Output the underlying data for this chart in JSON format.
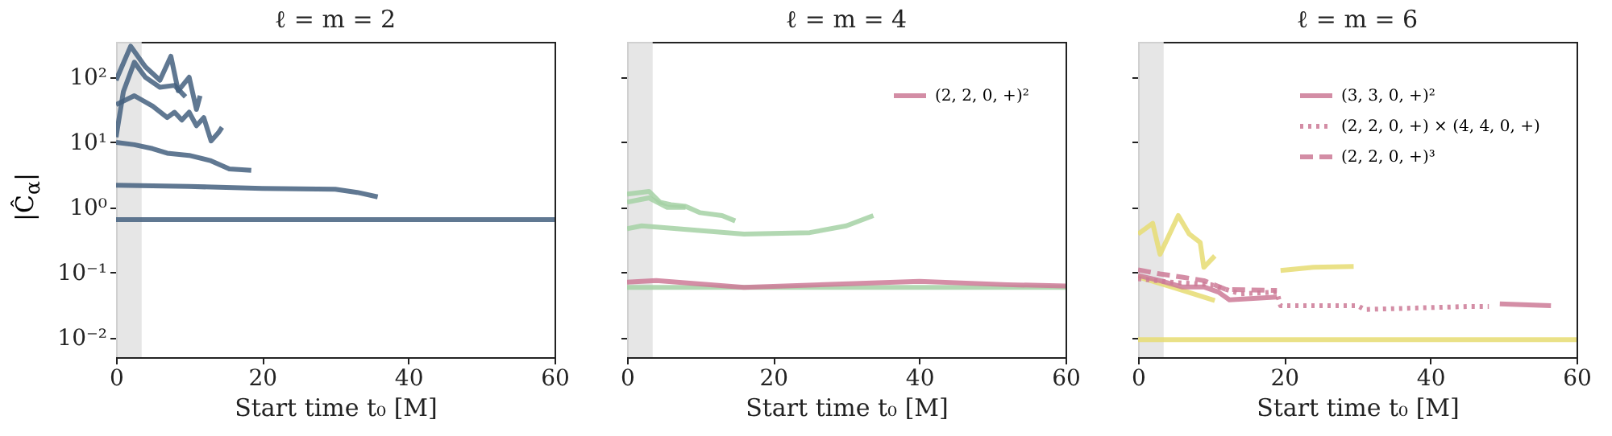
{
  "chart_data": [
    {
      "type": "line",
      "title": "ℓ = m = 2",
      "xlabel": "Start time t₀ [M]",
      "ylabel": "|Ĉ$_{α}$|",
      "log": "y",
      "xlim": [
        0,
        60
      ],
      "xticks": [
        0,
        20,
        40,
        60
      ],
      "ylim": [
        0.005,
        350
      ],
      "yticks": [
        {
          "value": 0.01,
          "label": "10⁻²"
        },
        {
          "value": 0.1,
          "label": "10⁻¹"
        },
        {
          "value": 1,
          "label": "10⁰"
        },
        {
          "value": 10,
          "label": "10¹"
        },
        {
          "value": 100,
          "label": "10²"
        }
      ],
      "bands": [
        {
          "axis": "x",
          "from": 0,
          "to": 3.5,
          "color": "#e3e3e3"
        }
      ],
      "series": [
        {
          "color": "#44607f",
          "x": [
            0,
            20,
            40,
            60
          ],
          "values": [
            0.65,
            0.65,
            0.65,
            0.65
          ]
        },
        {
          "color": "#44607f",
          "x": [
            0,
            10,
            20,
            30,
            33,
            35.8
          ],
          "values": [
            2.2,
            2.1,
            1.95,
            1.9,
            1.7,
            1.45
          ]
        },
        {
          "color": "#44607f",
          "x": [
            0,
            2.5,
            5,
            7,
            10,
            13,
            15.5,
            18.5
          ],
          "values": [
            10,
            9.2,
            8,
            6.8,
            6.3,
            5.2,
            3.9,
            3.7
          ]
        },
        {
          "color": "#44607f",
          "x": [
            0,
            2.5,
            5,
            7,
            8,
            9,
            10,
            11,
            12,
            13,
            14,
            14.5
          ],
          "values": [
            38,
            52,
            36,
            24,
            29,
            22,
            29,
            18,
            24,
            10.5,
            14,
            17
          ]
        },
        {
          "color": "#44607f",
          "x": [
            0,
            2,
            4,
            6,
            7.5,
            8.5,
            10,
            11,
            11.5
          ],
          "values": [
            90,
            300,
            145,
            90,
            210,
            62,
            100,
            32,
            52
          ]
        },
        {
          "color": "#44607f",
          "x": [
            0,
            1,
            2.5,
            4,
            6,
            8,
            9.5
          ],
          "values": [
            12,
            60,
            170,
            100,
            70,
            75,
            50
          ]
        }
      ]
    },
    {
      "type": "line",
      "title": "ℓ = m = 4",
      "xlabel": "Start time t₀ [M]",
      "log": "y",
      "xlim": [
        0,
        60
      ],
      "xticks": [
        0,
        20,
        40,
        60
      ],
      "ylim": [
        0.005,
        350
      ],
      "yticks": [
        {
          "value": 0.01,
          "label": null
        },
        {
          "value": 0.1,
          "label": null
        },
        {
          "value": 1,
          "label": null
        },
        {
          "value": 10,
          "label": null
        },
        {
          "value": 100,
          "label": null
        }
      ],
      "tick_labels": "x",
      "legend": "top right",
      "bands": [
        {
          "axis": "x",
          "from": 0,
          "to": 3.5,
          "color": "#e3e3e3"
        }
      ],
      "series": [
        {
          "color": "#a4d1a4",
          "x": [
            0,
            20,
            40,
            60
          ],
          "values": [
            0.059,
            0.059,
            0.059,
            0.059
          ]
        },
        {
          "color": "#a4d1a4",
          "x": [
            0,
            2,
            16,
            25,
            30,
            33.7
          ],
          "values": [
            0.47,
            0.52,
            0.39,
            0.41,
            0.52,
            0.75
          ]
        },
        {
          "color": "#a4d1a4",
          "x": [
            0,
            3,
            4.5,
            6,
            8,
            10,
            13,
            14.8
          ],
          "values": [
            1.6,
            1.76,
            1.2,
            1.1,
            1.04,
            0.83,
            0.75,
            0.62
          ]
        },
        {
          "color": "#a4d1a4",
          "x": [
            0,
            3,
            5.5,
            8
          ],
          "values": [
            1.2,
            1.4,
            1.0,
            1.0
          ]
        },
        {
          "name": "(2, 2, 0, +)²",
          "color": "#cc7a96",
          "line_style": "solid",
          "x": [
            0,
            4,
            16,
            40,
            52,
            60
          ],
          "values": [
            0.071,
            0.075,
            0.059,
            0.073,
            0.065,
            0.062
          ]
        }
      ]
    },
    {
      "type": "line",
      "title": "ℓ = m = 6",
      "xlabel": "Start time t₀ [M]",
      "log": "y",
      "xlim": [
        0,
        60
      ],
      "xticks": [
        0,
        20,
        40,
        60
      ],
      "ylim": [
        0.005,
        350
      ],
      "yticks": [
        {
          "value": 0.01,
          "label": null
        },
        {
          "value": 0.1,
          "label": null
        },
        {
          "value": 1,
          "label": null
        },
        {
          "value": 10,
          "label": null
        },
        {
          "value": 100,
          "label": null
        }
      ],
      "tick_labels": "x",
      "legend": "top right",
      "bands": [
        {
          "axis": "x",
          "from": 0,
          "to": 3.5,
          "color": "#e3e3e3"
        }
      ],
      "series": [
        {
          "color": "#e6dc72",
          "x": [
            0,
            20,
            40,
            60
          ],
          "values": [
            0.0093,
            0.0093,
            0.0093,
            0.0093
          ]
        },
        {
          "color": "#e6dc72",
          "x": [
            0,
            2,
            3,
            5.5,
            7,
            8.5,
            9,
            10.5
          ],
          "values": [
            0.39,
            0.57,
            0.19,
            0.75,
            0.39,
            0.29,
            0.12,
            0.18
          ]
        },
        {
          "color": "#e6dc72",
          "x": [
            19.5,
            24,
            29.5
          ],
          "values": [
            0.107,
            0.12,
            0.124
          ]
        },
        {
          "color": "#e6dc72",
          "x": [
            0,
            5,
            10.5
          ],
          "values": [
            0.086,
            0.058,
            0.037
          ]
        },
        {
          "name": "(3, 3, 0, +)²",
          "color": "#cc7a96",
          "line_style": "solid",
          "x": [
            0,
            3,
            6,
            9,
            11,
            12.5,
            19,
            30,
            49.5,
            56.5
          ],
          "values": [
            0.09,
            0.075,
            0.06,
            0.06,
            0.05,
            0.038,
            0.042,
            null,
            0.033,
            0.031
          ]
        },
        {
          "name": "(2, 2, 0, +) × (4, 4, 0, +)",
          "color": "#cc7a96",
          "line_style": "dotted",
          "x": [
            0,
            5,
            10,
            14,
            19,
            19.5,
            30,
            31,
            45,
            48
          ],
          "values": [
            0.08,
            0.07,
            0.065,
            0.047,
            0.05,
            0.031,
            0.031,
            0.027,
            0.03,
            0.03
          ]
        },
        {
          "name": "(2, 2, 0, +)³",
          "color": "#cc7a96",
          "line_style": "dashed",
          "x": [
            0,
            3,
            6,
            9,
            12,
            19
          ],
          "values": [
            0.11,
            0.095,
            0.085,
            0.075,
            0.055,
            0.053
          ]
        }
      ]
    }
  ]
}
